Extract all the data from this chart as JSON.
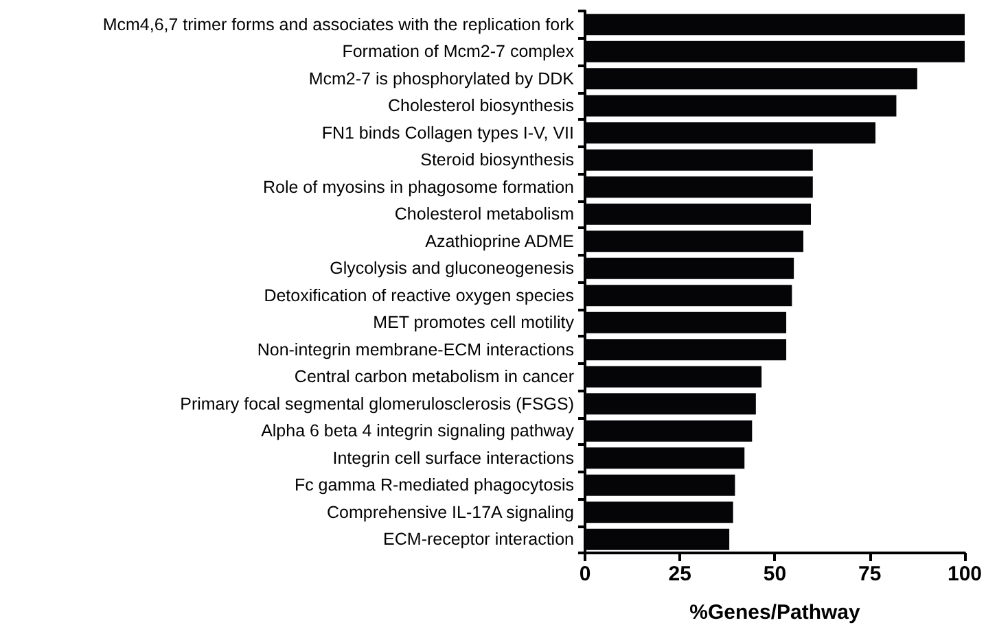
{
  "chart_data": {
    "type": "bar",
    "orientation": "horizontal",
    "xlabel": "%Genes/Pathway",
    "categories": [
      "Mcm4,6,7 trimer forms and associates with the replication fork",
      "Formation of Mcm2-7 complex",
      "Mcm2-7 is phosphorylated by DDK",
      "Cholesterol biosynthesis",
      "FN1 binds Collagen types I-V, VII",
      "Steroid biosynthesis",
      "Role of myosins in phagosome formation",
      "Cholesterol metabolism",
      "Azathioprine ADME",
      "Glycolysis and gluconeogenesis",
      "Detoxification of reactive oxygen species",
      "MET promotes cell motility",
      "Non-integrin membrane-ECM interactions",
      "Central carbon metabolism in cancer",
      "Primary focal segmental glomerulosclerosis (FSGS)",
      "Alpha 6 beta 4 integrin signaling pathway",
      "Integrin cell surface interactions",
      "Fc gamma R-mediated phagocytosis",
      "Comprehensive IL-17A signaling",
      "ECM-receptor interaction"
    ],
    "values": [
      100,
      100,
      87.5,
      82,
      76.5,
      60,
      60,
      59.5,
      57.5,
      55,
      54.5,
      53,
      53,
      46.5,
      45,
      44,
      42,
      39.5,
      39,
      38
    ],
    "color": "#050508",
    "xlim": [
      0,
      100
    ],
    "xticks": [
      0,
      25,
      50,
      75,
      100
    ],
    "grid": false
  }
}
